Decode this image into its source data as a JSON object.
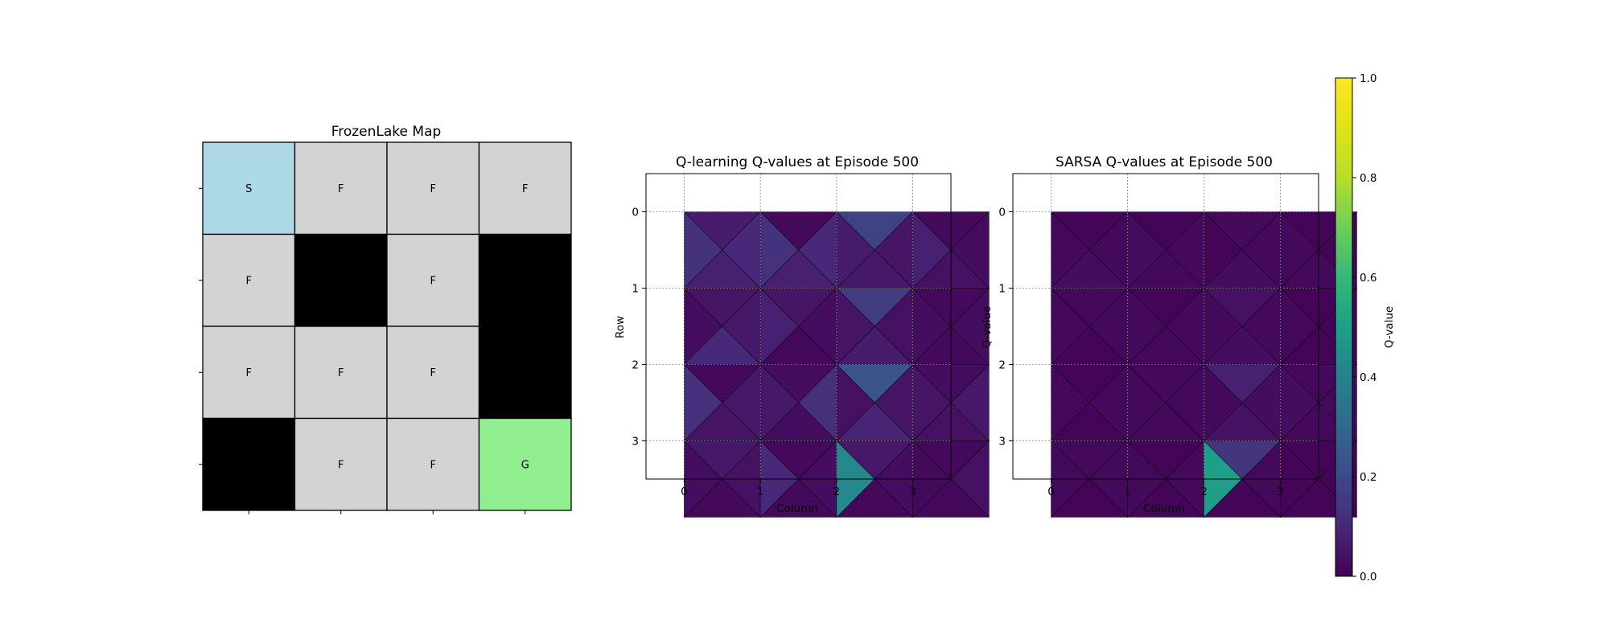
{
  "chart_data": [
    {
      "type": "grid-map",
      "title": "FrozenLake Map",
      "grid": [
        [
          "S",
          "F",
          "F",
          "F"
        ],
        [
          "F",
          "H",
          "F",
          "H"
        ],
        [
          "F",
          "F",
          "F",
          "H"
        ],
        [
          "H",
          "F",
          "F",
          "G"
        ]
      ],
      "colors": {
        "S": "#add8e6",
        "F": "#d3d3d3",
        "H": "#000000",
        "G": "#90ee90",
        "text_dark": "#000000",
        "text_on_hole": "#ffffff",
        "border": "#000000"
      }
    },
    {
      "type": "heatmap",
      "title": "Q-learning Q-values at Episode 500",
      "xlabel": "Column",
      "ylabel": "Row",
      "xticks": [
        "0",
        "1",
        "2",
        "3"
      ],
      "yticks": [
        "0",
        "1",
        "2",
        "3"
      ],
      "xlim": [
        -0.5,
        3.5
      ],
      "ylim": [
        3.5,
        -0.5
      ],
      "grid": true,
      "value_range": [
        0,
        1
      ],
      "cells": [
        [
          {
            "top": 0.07,
            "right": 0.1,
            "bottom": 0.08,
            "left": 0.13
          },
          {
            "top": 0.02,
            "right": 0.1,
            "bottom": 0.08,
            "left": 0.13
          },
          {
            "top": 0.18,
            "right": 0.05,
            "bottom": 0.06,
            "left": 0.07
          },
          {
            "top": 0.02,
            "right": 0.03,
            "bottom": 0.04,
            "left": 0.08
          }
        ],
        [
          {
            "top": 0.05,
            "right": 0.06,
            "bottom": 0.1,
            "left": 0.03
          },
          {
            "top": 0.05,
            "right": 0.03,
            "bottom": 0.02,
            "left": 0.08
          },
          {
            "top": 0.16,
            "right": 0.04,
            "bottom": 0.07,
            "left": 0.05
          },
          {
            "top": 0.02,
            "right": 0.03,
            "bottom": 0.02,
            "left": 0.03
          }
        ],
        [
          {
            "top": 0.02,
            "right": 0.06,
            "bottom": 0.05,
            "left": 0.12
          },
          {
            "top": 0.03,
            "right": 0.12,
            "bottom": 0.03,
            "left": 0.06
          },
          {
            "top": 0.24,
            "right": 0.05,
            "bottom": 0.09,
            "left": 0.04
          },
          {
            "top": 0.03,
            "right": 0.06,
            "bottom": 0.04,
            "left": 0.05
          }
        ],
        [
          {
            "top": 0.06,
            "right": 0.04,
            "bottom": 0.02,
            "left": 0.03
          },
          {
            "top": 0.02,
            "right": 0.03,
            "bottom": 0.02,
            "left": 0.1
          },
          {
            "top": 0.06,
            "right": 0.03,
            "bottom": 0.02,
            "left": 0.42
          },
          {
            "top": 0.02,
            "right": 0.04,
            "bottom": 0.02,
            "left": 0.02
          }
        ]
      ]
    },
    {
      "type": "heatmap",
      "title": "SARSA Q-values at Episode 500",
      "xlabel": "Column",
      "ylabel": "",
      "xticks": [
        "0",
        "1",
        "2",
        "3"
      ],
      "yticks": [
        "0",
        "1",
        "2",
        "3"
      ],
      "xlim": [
        -0.5,
        3.5
      ],
      "ylim": [
        3.5,
        -0.5
      ],
      "grid": true,
      "value_range": [
        0,
        1
      ],
      "cells": [
        [
          {
            "top": 0.01,
            "right": 0.02,
            "bottom": 0.03,
            "left": 0.02
          },
          {
            "top": 0.01,
            "right": 0.02,
            "bottom": 0.02,
            "left": 0.03
          },
          {
            "top": 0.02,
            "right": 0.02,
            "bottom": 0.03,
            "left": 0.01
          },
          {
            "top": 0.01,
            "right": 0.01,
            "bottom": 0.02,
            "left": 0.02
          }
        ],
        [
          {
            "top": 0.02,
            "right": 0.02,
            "bottom": 0.01,
            "left": 0.02
          },
          {
            "top": 0.01,
            "right": 0.02,
            "bottom": 0.02,
            "left": 0.02
          },
          {
            "top": 0.04,
            "right": 0.02,
            "bottom": 0.03,
            "left": 0.02
          },
          {
            "top": 0.01,
            "right": 0.01,
            "bottom": 0.01,
            "left": 0.02
          }
        ],
        [
          {
            "top": 0.01,
            "right": 0.02,
            "bottom": 0.01,
            "left": 0.02
          },
          {
            "top": 0.02,
            "right": 0.02,
            "bottom": 0.02,
            "left": 0.02
          },
          {
            "top": 0.08,
            "right": 0.03,
            "bottom": 0.04,
            "left": 0.02
          },
          {
            "top": 0.02,
            "right": 0.02,
            "bottom": 0.02,
            "left": 0.03
          }
        ],
        [
          {
            "top": 0.02,
            "right": 0.02,
            "bottom": 0.01,
            "left": 0.02
          },
          {
            "top": 0.01,
            "right": 0.02,
            "bottom": 0.01,
            "left": 0.02
          },
          {
            "top": 0.14,
            "right": 0.02,
            "bottom": 0.01,
            "left": 0.5
          },
          {
            "top": 0.01,
            "right": 0.01,
            "bottom": 0.01,
            "left": 0.01
          }
        ]
      ]
    },
    {
      "type": "colorbar",
      "label": "Q-value",
      "colormap": "viridis",
      "range": [
        0,
        1
      ],
      "ticks": [
        "0.0",
        "0.2",
        "0.4",
        "0.6",
        "0.8",
        "1.0"
      ]
    }
  ]
}
